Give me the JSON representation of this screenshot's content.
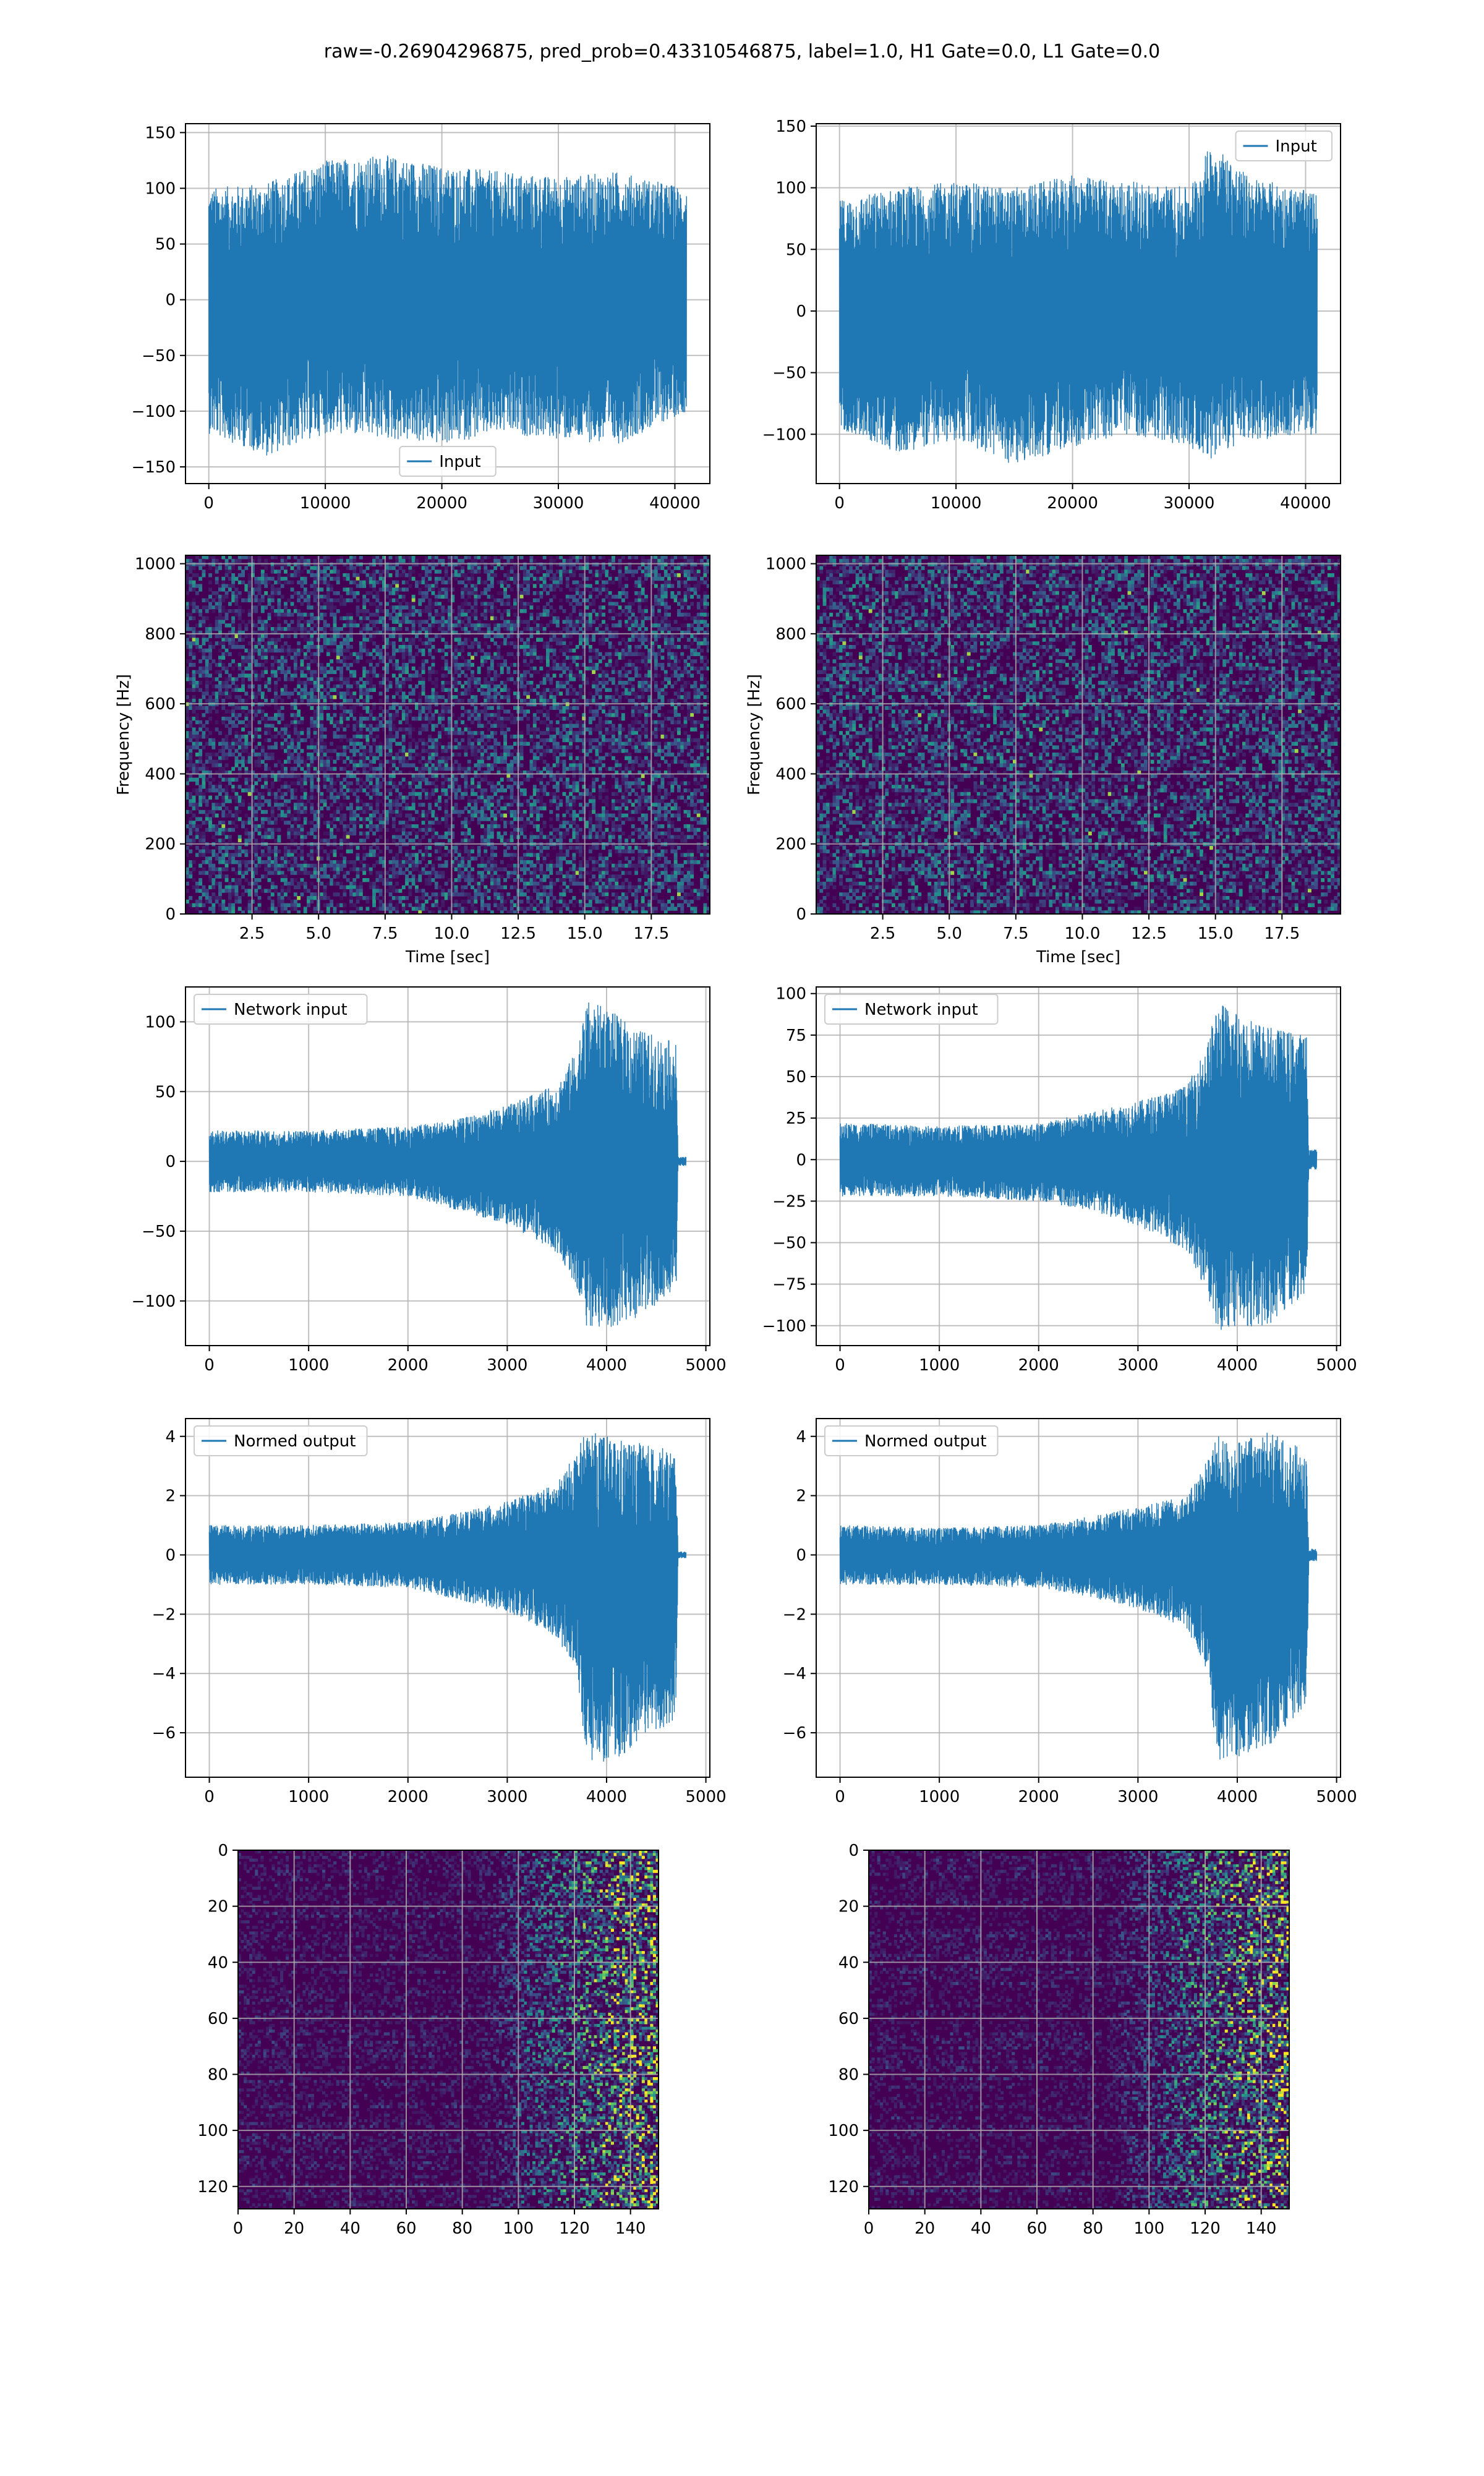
{
  "figure": {
    "suptitle": "raw=-0.26904296875, pred_prob=0.43310546875, label=1.0, H1 Gate=0.0, L1 Gate=0.0"
  },
  "colors": {
    "line": "#1f77b4",
    "grid": "#b0b0b0",
    "viridis_low": "#440154",
    "viridis_mid": "#21918c",
    "viridis_high": "#fde725"
  },
  "chart_data": [
    {
      "id": "strain-left",
      "type": "line",
      "title": "",
      "xlabel": "",
      "ylabel": "",
      "xlim": [
        -2000,
        43000
      ],
      "ylim": [
        -165,
        158
      ],
      "xticks": [
        0,
        10000,
        20000,
        30000,
        40000
      ],
      "xtick_labels": [
        "0",
        "10000",
        "20000",
        "30000",
        "40000"
      ],
      "yticks": [
        -150,
        -100,
        -50,
        0,
        50,
        100,
        150
      ],
      "ytick_labels": [
        "−150",
        "−100",
        "−50",
        "0",
        "50",
        "100",
        "150"
      ],
      "grid": true,
      "legend": "lower-center",
      "series": [
        {
          "name": "Input",
          "envelope": {
            "x": [
              0,
              5000,
              10000,
              15000,
              20000,
              25000,
              30000,
              35000,
              41000
            ],
            "upper": [
              100,
              105,
              125,
              130,
              120,
              115,
              110,
              115,
              100
            ],
            "lower": [
              -120,
              -140,
              -120,
              -125,
              -130,
              -120,
              -125,
              -130,
              -100
            ]
          }
        }
      ]
    },
    {
      "id": "strain-right",
      "type": "line",
      "title": "",
      "xlabel": "",
      "ylabel": "",
      "xlim": [
        -2000,
        43000
      ],
      "ylim": [
        -140,
        152
      ],
      "xticks": [
        0,
        10000,
        20000,
        30000,
        40000
      ],
      "xtick_labels": [
        "0",
        "10000",
        "20000",
        "30000",
        "40000"
      ],
      "yticks": [
        -100,
        -50,
        0,
        50,
        100,
        150
      ],
      "ytick_labels": [
        "−100",
        "−50",
        "0",
        "50",
        "100",
        "150"
      ],
      "grid": true,
      "legend": "upper-right",
      "series": [
        {
          "name": "Input",
          "envelope": {
            "x": [
              0,
              5000,
              10000,
              15000,
              20000,
              25000,
              30000,
              32000,
              35000,
              41000
            ],
            "upper": [
              90,
              100,
              105,
              100,
              110,
              105,
              100,
              138,
              110,
              95
            ],
            "lower": [
              -95,
              -115,
              -105,
              -125,
              -110,
              -100,
              -110,
              -120,
              -105,
              -100
            ]
          }
        }
      ]
    },
    {
      "id": "spectrogram-left",
      "type": "heatmap",
      "title": "",
      "xlabel": "Time [sec]",
      "ylabel": "Frequency [Hz]",
      "xlim": [
        0,
        19.7
      ],
      "ylim": [
        0,
        1024
      ],
      "xticks": [
        2.5,
        5,
        7.5,
        10,
        12.5,
        15,
        17.5
      ],
      "xtick_labels": [
        "2.5",
        "5.0",
        "7.5",
        "10.0",
        "12.5",
        "15.0",
        "17.5"
      ],
      "yticks": [
        0,
        200,
        400,
        600,
        800,
        1000
      ],
      "ytick_labels": [
        "0",
        "200",
        "400",
        "600",
        "800",
        "1000"
      ],
      "grid": true,
      "colormap": "viridis",
      "description": "broadband noise, low power"
    },
    {
      "id": "spectrogram-right",
      "type": "heatmap",
      "title": "",
      "xlabel": "Time [sec]",
      "ylabel": "Frequency [Hz]",
      "xlim": [
        0,
        19.7
      ],
      "ylim": [
        0,
        1024
      ],
      "xticks": [
        2.5,
        5,
        7.5,
        10,
        12.5,
        15,
        17.5
      ],
      "xtick_labels": [
        "2.5",
        "5.0",
        "7.5",
        "10.0",
        "12.5",
        "15.0",
        "17.5"
      ],
      "yticks": [
        0,
        200,
        400,
        600,
        800,
        1000
      ],
      "ytick_labels": [
        "0",
        "200",
        "400",
        "600",
        "800",
        "1000"
      ],
      "grid": true,
      "colormap": "viridis",
      "description": "broadband noise, low power"
    },
    {
      "id": "network-input-left",
      "type": "line",
      "title": "",
      "xlabel": "",
      "ylabel": "",
      "xlim": [
        -240,
        5040
      ],
      "ylim": [
        -132,
        125
      ],
      "xticks": [
        0,
        1000,
        2000,
        3000,
        4000,
        5000
      ],
      "xtick_labels": [
        "0",
        "1000",
        "2000",
        "3000",
        "4000",
        "5000"
      ],
      "yticks": [
        -100,
        -50,
        0,
        50,
        100
      ],
      "ytick_labels": [
        "−100",
        "−50",
        "0",
        "50",
        "100"
      ],
      "grid": true,
      "legend": "upper-left",
      "series": [
        {
          "name": "Network input",
          "envelope": {
            "x": [
              0,
              1000,
              2000,
              2500,
              3000,
              3500,
              3700,
              3800,
              4000,
              4300,
              4700,
              4720,
              4800
            ],
            "upper": [
              22,
              22,
              25,
              30,
              40,
              55,
              80,
              115,
              110,
              95,
              85,
              3,
              3
            ],
            "lower": [
              -22,
              -22,
              -25,
              -35,
              -45,
              -65,
              -90,
              -118,
              -120,
              -112,
              -95,
              -3,
              -3
            ]
          }
        }
      ]
    },
    {
      "id": "network-input-right",
      "type": "line",
      "title": "",
      "xlabel": "",
      "ylabel": "",
      "xlim": [
        -240,
        5040
      ],
      "ylim": [
        -112,
        104
      ],
      "xticks": [
        0,
        1000,
        2000,
        3000,
        4000,
        5000
      ],
      "xtick_labels": [
        "0",
        "1000",
        "2000",
        "3000",
        "4000",
        "5000"
      ],
      "yticks": [
        -100,
        -75,
        -50,
        -25,
        0,
        25,
        50,
        75,
        100
      ],
      "ytick_labels": [
        "−100",
        "−75",
        "−50",
        "−25",
        "0",
        "25",
        "50",
        "75",
        "100"
      ],
      "grid": true,
      "legend": "upper-left",
      "series": [
        {
          "name": "Network input",
          "envelope": {
            "x": [
              0,
              1000,
              2000,
              2500,
              3000,
              3500,
              3700,
              3800,
              4000,
              4300,
              4700,
              4720,
              4800
            ],
            "upper": [
              22,
              20,
              22,
              28,
              35,
              45,
              70,
              95,
              90,
              80,
              75,
              6,
              6
            ],
            "lower": [
              -22,
              -22,
              -25,
              -30,
              -40,
              -55,
              -80,
              -105,
              -102,
              -100,
              -80,
              -6,
              -6
            ]
          }
        }
      ]
    },
    {
      "id": "normed-output-left",
      "type": "line",
      "title": "",
      "xlabel": "",
      "ylabel": "",
      "xlim": [
        -240,
        5040
      ],
      "ylim": [
        -7.5,
        4.6
      ],
      "xticks": [
        0,
        1000,
        2000,
        3000,
        4000,
        5000
      ],
      "xtick_labels": [
        "0",
        "1000",
        "2000",
        "3000",
        "4000",
        "5000"
      ],
      "yticks": [
        -6,
        -4,
        -2,
        0,
        2,
        4
      ],
      "ytick_labels": [
        "−6",
        "−4",
        "−2",
        "0",
        "2",
        "4"
      ],
      "grid": true,
      "legend": "upper-left",
      "series": [
        {
          "name": "Normed output",
          "envelope": {
            "x": [
              0,
              1000,
              2000,
              2500,
              3000,
              3500,
              3700,
              3800,
              4000,
              4300,
              4700,
              4720,
              4800
            ],
            "upper": [
              1.0,
              1.0,
              1.1,
              1.4,
              1.8,
              2.4,
              3.5,
              4.2,
              4.0,
              3.8,
              3.5,
              0.1,
              0.1
            ],
            "lower": [
              -1.0,
              -1.0,
              -1.1,
              -1.5,
              -1.9,
              -2.8,
              -4.0,
              -6.9,
              -7.0,
              -6.5,
              -5.5,
              -0.1,
              -0.1
            ]
          }
        }
      ]
    },
    {
      "id": "normed-output-right",
      "type": "line",
      "title": "",
      "xlabel": "",
      "ylabel": "",
      "xlim": [
        -240,
        5040
      ],
      "ylim": [
        -7.5,
        4.6
      ],
      "xticks": [
        0,
        1000,
        2000,
        3000,
        4000,
        5000
      ],
      "xtick_labels": [
        "0",
        "1000",
        "2000",
        "3000",
        "4000",
        "5000"
      ],
      "yticks": [
        -6,
        -4,
        -2,
        0,
        2,
        4
      ],
      "ytick_labels": [
        "−6",
        "−4",
        "−2",
        "0",
        "2",
        "4"
      ],
      "grid": true,
      "legend": "upper-left",
      "series": [
        {
          "name": "Normed output",
          "envelope": {
            "x": [
              0,
              1000,
              2000,
              2500,
              3000,
              3500,
              3700,
              3800,
              4000,
              4300,
              4700,
              4720,
              4800
            ],
            "upper": [
              1.0,
              0.9,
              1.0,
              1.3,
              1.6,
              2.0,
              3.3,
              4.0,
              3.8,
              4.2,
              3.5,
              0.2,
              0.2
            ],
            "lower": [
              -1.0,
              -1.0,
              -1.1,
              -1.4,
              -1.8,
              -2.5,
              -4.0,
              -7.0,
              -6.8,
              -6.5,
              -5.0,
              -0.2,
              -0.2
            ]
          }
        }
      ]
    },
    {
      "id": "qtransform-left",
      "type": "heatmap",
      "title": "",
      "xlabel": "",
      "ylabel": "",
      "xlim": [
        0,
        150
      ],
      "ylim": [
        128,
        0
      ],
      "xticks": [
        0,
        20,
        40,
        60,
        80,
        100,
        120,
        140
      ],
      "xtick_labels": [
        "0",
        "20",
        "40",
        "60",
        "80",
        "100",
        "120",
        "140"
      ],
      "yticks": [
        0,
        20,
        40,
        60,
        80,
        100,
        120
      ],
      "ytick_labels": [
        "0",
        "20",
        "40",
        "60",
        "80",
        "100",
        "120"
      ],
      "grid": true,
      "colormap": "viridis",
      "description": "power rises toward x above ~90"
    },
    {
      "id": "qtransform-right",
      "type": "heatmap",
      "title": "",
      "xlabel": "",
      "ylabel": "",
      "xlim": [
        0,
        150
      ],
      "ylim": [
        128,
        0
      ],
      "xticks": [
        0,
        20,
        40,
        60,
        80,
        100,
        120,
        140
      ],
      "xtick_labels": [
        "0",
        "20",
        "40",
        "60",
        "80",
        "100",
        "120",
        "140"
      ],
      "yticks": [
        0,
        20,
        40,
        60,
        80,
        100,
        120
      ],
      "ytick_labels": [
        "0",
        "20",
        "40",
        "60",
        "80",
        "100",
        "120"
      ],
      "grid": true,
      "colormap": "viridis",
      "description": "power rises toward x above ~90"
    }
  ]
}
